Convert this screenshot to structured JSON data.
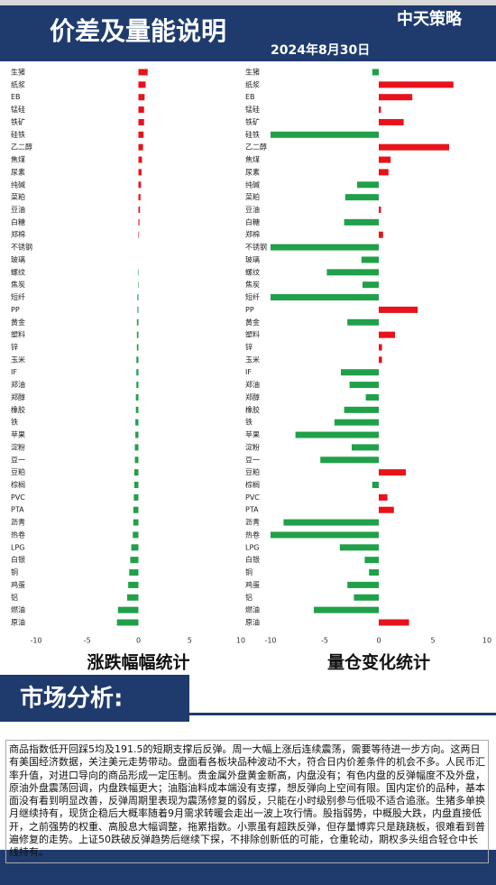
{
  "header": {
    "title": "价差及量能说明",
    "logo": "中天策略",
    "date": "2024年8月30日"
  },
  "chart_data": [
    {
      "type": "hbar",
      "title": "涨跌幅幅统计",
      "categories": [
        "生猪",
        "纸浆",
        "EB",
        "锰硅",
        "铁矿",
        "硅铁",
        "乙二醇",
        "焦煤",
        "尿素",
        "纯碱",
        "菜粕",
        "豆油",
        "白糖",
        "郑棉",
        "不锈钢",
        "玻璃",
        "螺纹",
        "焦炭",
        "短纤",
        "PP",
        "黄金",
        "塑料",
        "锌",
        "玉米",
        "IF",
        "郑油",
        "郑醇",
        "橡胶",
        "铁",
        "苹果",
        "淀粉",
        "豆一",
        "豆粕",
        "棕榈",
        "PVC",
        "PTA",
        "沥青",
        "热卷",
        "LPG",
        "白银",
        "铜",
        "鸡蛋",
        "铝",
        "燃油",
        "原油"
      ],
      "values": [
        0.9,
        0.7,
        0.6,
        0.55,
        0.55,
        0.5,
        0.45,
        0.35,
        0.3,
        0.25,
        0.2,
        0.15,
        0.1,
        0.05,
        0,
        0,
        -0.05,
        -0.05,
        -0.1,
        -0.1,
        -0.15,
        -0.15,
        -0.15,
        -0.2,
        -0.2,
        -0.2,
        -0.25,
        -0.25,
        -0.3,
        -0.3,
        -0.35,
        -0.35,
        -0.4,
        -0.4,
        -0.45,
        -0.5,
        -0.5,
        -0.55,
        -0.7,
        -0.8,
        -0.9,
        -1.0,
        -1.1,
        -2.0,
        -2.1
      ],
      "positive_color": "#e8121b",
      "negative_color": "#21a04a",
      "xlim": [
        -10,
        10
      ],
      "xticks": [
        -10,
        -5,
        0,
        5,
        10
      ],
      "grid": false
    },
    {
      "type": "hbar",
      "title": "量仓变化统计",
      "categories": [
        "生猪",
        "纸浆",
        "EB",
        "锰硅",
        "铁矿",
        "硅铁",
        "乙二醇",
        "焦煤",
        "尿素",
        "纯碱",
        "菜粕",
        "豆油",
        "白糖",
        "郑棉",
        "不锈钢",
        "玻璃",
        "螺纹",
        "焦炭",
        "短纤",
        "PP",
        "黄金",
        "塑料",
        "锌",
        "玉米",
        "IF",
        "郑油",
        "郑醇",
        "橡胶",
        "铁",
        "苹果",
        "淀粉",
        "豆一",
        "豆粕",
        "棕榈",
        "PVC",
        "PTA",
        "沥青",
        "热卷",
        "LPG",
        "白银",
        "铜",
        "鸡蛋",
        "铝",
        "燃油",
        "原油"
      ],
      "values": [
        -0.6,
        6.9,
        3.1,
        0.2,
        2.3,
        -10,
        6.5,
        1.1,
        0.9,
        -2,
        -3.1,
        0.2,
        -3.2,
        0.4,
        -10,
        -1.6,
        -4.8,
        -1.5,
        -10,
        3.6,
        -2.9,
        1.5,
        0.3,
        0.3,
        -3.5,
        -2.7,
        -1.2,
        -3.2,
        -4.1,
        -7.7,
        -2.5,
        -5.4,
        2.5,
        -0.6,
        0.8,
        1.4,
        -8.8,
        -10,
        -3.6,
        -1.3,
        -0.9,
        -2.9,
        -2.3,
        -6,
        2.8
      ],
      "positive_color": "#e8121b",
      "negative_color": "#21a04a",
      "xlim": [
        -10,
        10
      ],
      "xticks": [
        -10,
        -5,
        0,
        5,
        10
      ],
      "grid": false
    }
  ],
  "analysis": {
    "title": "市场分析:",
    "text": "商品指数低开回踩5均及191.5的短期支撑后反弹。周一大幅上涨后连续震荡，需要等待进一步方向。这两日有美国经济数据，关注美元走势带动。盘面看各板块品种波动不大，符合日内价差条件的机会不多。人民币汇率升值，对进口导向的商品形成一定压制。贵金属外盘黄金新高，内盘没有；有色内盘的反弹幅度不及外盘，原油外盘震荡回调，内盘跌幅更大；油脂油料成本端没有支撑，想反弹向上空间有限。国内定价的品种，基本面没有看到明显改善，反弹周期里表现为震荡修复的弱反，只能在小时级别参与低吸不适合追涨。生猪多单换月继续持有，现货企稳后大概率随着9月需求转暖会走出一波上攻行情。股指弱势，中概股大跌，内盘直接低开，之前强势的权重、高股息大幅调整，拖累指数。小票虽有超跌反弹，但存量博弈只是跷跷板，很难看到普遍修复的走势。上证50跌破反弹趋势后继续下探，不排除创新低的可能，仓重轮动，期权多头组合轻仓中长线持有。"
  }
}
